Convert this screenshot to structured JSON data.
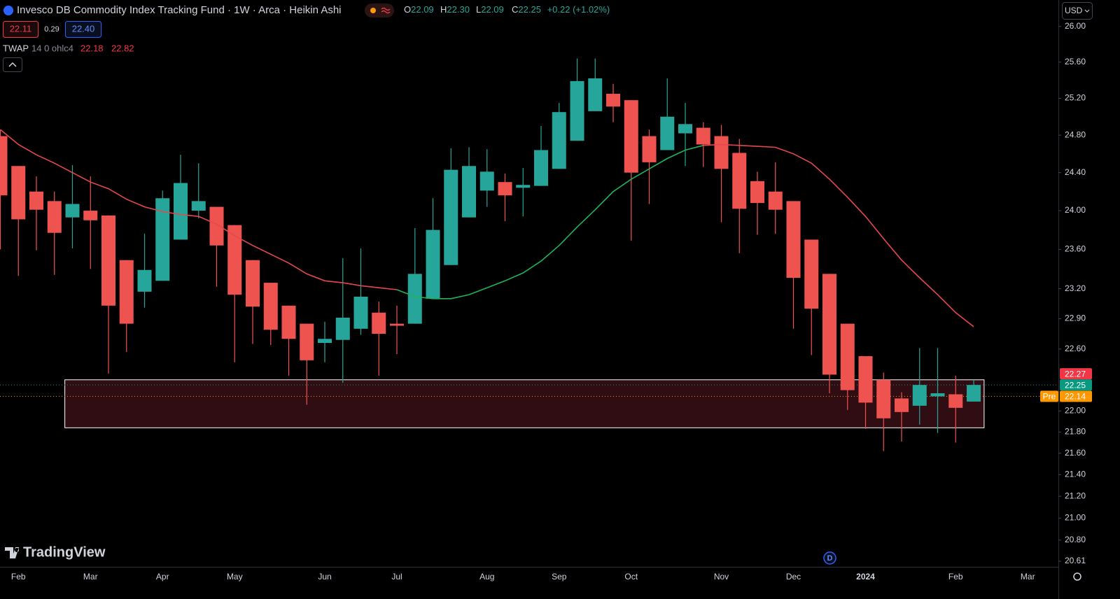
{
  "chart_data": {
    "type": "candlestick",
    "header": {
      "title": "Invesco DB Commodity Index Tracking Fund · 1W · Arca · Heikin Ashi",
      "ohlc": [
        {
          "label": "O",
          "value": "22.09"
        },
        {
          "label": "H",
          "value": "22.30"
        },
        {
          "label": "L",
          "value": "22.09"
        },
        {
          "label": "C",
          "value": "22.25"
        }
      ],
      "change": "+0.22 (+1.02%)",
      "bid": "22.11",
      "spread": "0.29",
      "ask": "22.40"
    },
    "indicator": {
      "name": "TWAP",
      "params": "14 0 ohlc4",
      "values": [
        "22.18",
        "22.82"
      ]
    },
    "currency": "USD",
    "brand": "TradingView",
    "event_marker": "D",
    "log_scale": true,
    "up_color": "#26a69a",
    "down_color": "#ef5350",
    "categories": [
      null,
      "Feb",
      null,
      null,
      null,
      "Mar",
      null,
      null,
      null,
      "Apr",
      null,
      null,
      null,
      "May",
      null,
      null,
      null,
      null,
      "Jun",
      null,
      null,
      null,
      "Jul",
      null,
      null,
      null,
      null,
      "Aug",
      null,
      null,
      null,
      "Sep",
      null,
      null,
      null,
      "Oct",
      null,
      null,
      null,
      null,
      "Nov",
      null,
      null,
      null,
      "Dec",
      null,
      null,
      null,
      "2024",
      null,
      null,
      null,
      null,
      "Feb",
      null,
      null,
      null,
      "Mar"
    ],
    "open": [
      24.79,
      24.47,
      24.2,
      24.1,
      23.93,
      24.0,
      23.95,
      23.49,
      23.17,
      23.28,
      23.7,
      24.0,
      24.04,
      23.85,
      23.49,
      23.26,
      23.03,
      22.85,
      22.66,
      22.69,
      22.8,
      22.96,
      22.85,
      22.85,
      23.1,
      23.44,
      23.93,
      24.21,
      24.3,
      24.24,
      24.26,
      24.44,
      24.74,
      25.06,
      25.25,
      25.18,
      24.79,
      24.64,
      24.82,
      24.88,
      24.79,
      24.61,
      24.31,
      24.2,
      24.1,
      23.7,
      23.35,
      22.85,
      22.53,
      22.3,
      22.12,
      22.05,
      22.14,
      22.16,
      22.09,
      null,
      null,
      null
    ],
    "high": [
      24.86,
      24.47,
      24.36,
      24.2,
      24.48,
      24.36,
      23.95,
      23.49,
      23.76,
      24.21,
      24.59,
      24.5,
      24.04,
      23.85,
      23.49,
      23.26,
      23.03,
      22.85,
      22.87,
      23.51,
      23.61,
      23.07,
      23.03,
      23.82,
      24.13,
      24.66,
      24.67,
      24.65,
      24.39,
      24.45,
      24.9,
      25.15,
      25.64,
      25.64,
      25.36,
      25.18,
      24.86,
      25.42,
      25.15,
      24.94,
      24.91,
      24.76,
      24.41,
      24.51,
      24.1,
      23.7,
      23.35,
      22.85,
      22.53,
      22.37,
      22.18,
      22.61,
      22.61,
      22.34,
      22.3,
      null,
      null,
      null
    ],
    "low": [
      23.6,
      23.33,
      23.59,
      23.34,
      23.61,
      23.4,
      22.36,
      22.57,
      23.01,
      23.28,
      23.7,
      23.92,
      23.22,
      22.47,
      22.65,
      22.64,
      22.34,
      22.06,
      22.47,
      22.27,
      22.74,
      22.34,
      22.55,
      22.85,
      23.1,
      23.44,
      23.93,
      24.04,
      23.89,
      23.94,
      24.26,
      24.44,
      24.74,
      25.06,
      24.94,
      23.69,
      24.07,
      24.64,
      24.47,
      24.46,
      23.88,
      23.56,
      23.75,
      23.76,
      22.8,
      22.54,
      22.17,
      22.01,
      21.83,
      21.62,
      21.71,
      21.87,
      21.79,
      21.7,
      22.09,
      null,
      null,
      null
    ],
    "close": [
      24.16,
      23.91,
      24.01,
      23.77,
      24.07,
      23.9,
      23.03,
      22.85,
      23.39,
      24.13,
      24.29,
      24.1,
      23.64,
      23.14,
      23.02,
      22.79,
      22.7,
      22.49,
      22.7,
      22.91,
      23.12,
      22.75,
      22.83,
      23.35,
      23.8,
      24.43,
      24.47,
      24.41,
      24.16,
      24.27,
      24.64,
      25.05,
      25.39,
      25.42,
      25.11,
      24.4,
      24.51,
      25.0,
      24.92,
      24.7,
      24.44,
      24.02,
      24.08,
      24.01,
      23.31,
      23.0,
      22.35,
      22.2,
      22.08,
      21.93,
      21.99,
      22.25,
      22.17,
      22.03,
      22.25,
      null,
      null,
      null
    ],
    "series": [
      {
        "color": "#e5474f",
        "values": [
          24.86,
          24.7,
          24.59,
          24.5,
          24.4,
          24.3,
          24.23,
          24.12,
          24.04,
          23.99,
          23.96,
          23.94,
          23.86,
          23.74,
          23.64,
          23.55,
          23.46,
          23.35,
          23.28,
          23.26,
          23.23,
          23.21,
          23.19,
          null,
          null,
          null,
          null,
          null,
          null,
          null,
          null,
          null,
          null,
          null,
          null,
          null,
          null,
          null,
          null,
          24.69,
          24.7,
          24.69,
          24.68,
          24.67,
          24.6,
          24.5,
          24.33,
          24.14,
          23.94,
          23.71,
          23.49,
          23.31,
          23.14,
          22.96,
          22.82,
          null,
          null,
          null
        ]
      },
      {
        "color": "#1fb35b",
        "values": [
          null,
          null,
          null,
          null,
          null,
          null,
          null,
          null,
          null,
          null,
          null,
          null,
          null,
          null,
          null,
          null,
          null,
          null,
          null,
          null,
          null,
          null,
          23.19,
          23.12,
          23.1,
          23.1,
          23.14,
          23.21,
          23.28,
          23.36,
          23.48,
          23.64,
          23.83,
          24.01,
          24.2,
          24.33,
          24.44,
          24.55,
          24.64,
          24.69,
          null,
          null,
          null,
          null,
          null,
          null,
          null,
          null,
          null,
          null,
          null,
          null,
          null,
          null,
          null,
          null,
          null,
          null
        ]
      }
    ],
    "zone": {
      "from": 4,
      "to": 55,
      "top": 22.3,
      "bottom": 21.84
    },
    "price_tags": [
      {
        "value": 22.27,
        "color": "#f23645"
      },
      {
        "value": 22.25,
        "color": "#089981",
        "dotted": true
      },
      {
        "value": 22.14,
        "prefix": "Pre",
        "color": "#ff9800",
        "dotted": true
      }
    ],
    "ylim": [
      20.56,
      26.3
    ],
    "yticks": [
      {
        "value": 26,
        "label": "26.00"
      },
      {
        "value": 25.6,
        "label": "25.60"
      },
      {
        "value": 25.2,
        "label": "25.20"
      },
      {
        "value": 24.8,
        "label": "24.80"
      },
      {
        "value": 24.4,
        "label": "24.40"
      },
      {
        "value": 24,
        "label": "24.00"
      },
      {
        "value": 23.6,
        "label": "23.60"
      },
      {
        "value": 23.2,
        "label": "23.20"
      },
      {
        "value": 22.9,
        "label": "22.90"
      },
      {
        "value": 22.6,
        "label": "22.60"
      },
      {
        "value": 22,
        "label": "22.00"
      },
      {
        "value": 21.8,
        "label": "21.80"
      },
      {
        "value": 21.6,
        "label": "21.60"
      },
      {
        "value": 21.4,
        "label": "21.40"
      },
      {
        "value": 21.2,
        "label": "21.20"
      },
      {
        "value": 21,
        "label": "21.00"
      },
      {
        "value": 20.8,
        "label": "20.80"
      },
      {
        "value": 20.61,
        "label": "20.61"
      }
    ]
  }
}
